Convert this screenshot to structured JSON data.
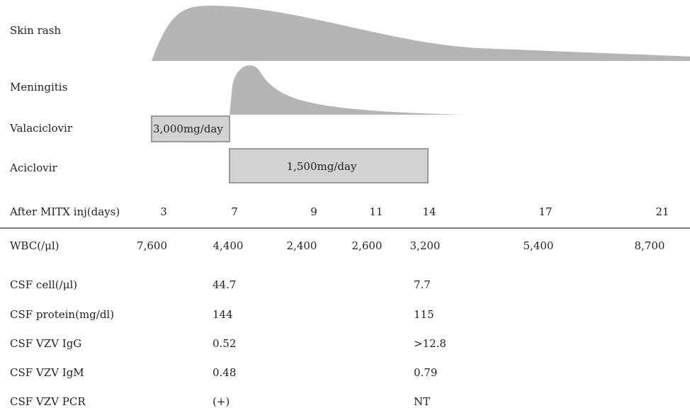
{
  "chart_data": {
    "type": "timeline",
    "xlabel": "After MITX inj(days)",
    "days": [
      3,
      7,
      9,
      11,
      14,
      17,
      21
    ],
    "colors": {
      "curve": "#b5b5b5",
      "bar_fill": "#d2d2d2",
      "bar_stroke": "#9a9a9a"
    },
    "tracks": [
      {
        "label": "Skin rash",
        "kind": "curve",
        "start_day": 3,
        "peak_day": 6,
        "end_day": 21,
        "end_level": 0.08
      },
      {
        "label": "Meningitis",
        "kind": "curve",
        "start_day": 7,
        "peak_day": 7.5,
        "end_day": 15,
        "end_level": 0.0
      },
      {
        "label": "Valaciclovir",
        "kind": "bar",
        "start_day": 3,
        "end_day": 7,
        "text": "3,000mg/day"
      },
      {
        "label": "Aciclovir",
        "kind": "bar",
        "start_day": 7,
        "end_day": 14,
        "text": "1,500mg/day"
      }
    ],
    "table": [
      {
        "label": "WBC(/μl)",
        "values": [
          "7,600",
          "4,400",
          "2,400",
          "2,600",
          "3,200",
          "5,400",
          "8,700"
        ]
      },
      {
        "label": "CSF cell(/μl)",
        "values": [
          "",
          "44.7",
          "",
          "",
          "7.7",
          "",
          ""
        ]
      },
      {
        "label": "CSF protein(mg/dl)",
        "values": [
          "",
          "144",
          "",
          "",
          "115",
          "",
          ""
        ]
      },
      {
        "label": "CSF VZV IgG",
        "values": [
          "",
          "0.52",
          "",
          "",
          ">12.8",
          "",
          ""
        ]
      },
      {
        "label": "CSF VZV IgM",
        "values": [
          "",
          "0.48",
          "",
          "",
          "0.79",
          "",
          ""
        ]
      },
      {
        "label": "CSF VZV PCR",
        "values": [
          "",
          "(+)",
          "",
          "",
          "NT",
          "",
          ""
        ]
      }
    ]
  }
}
